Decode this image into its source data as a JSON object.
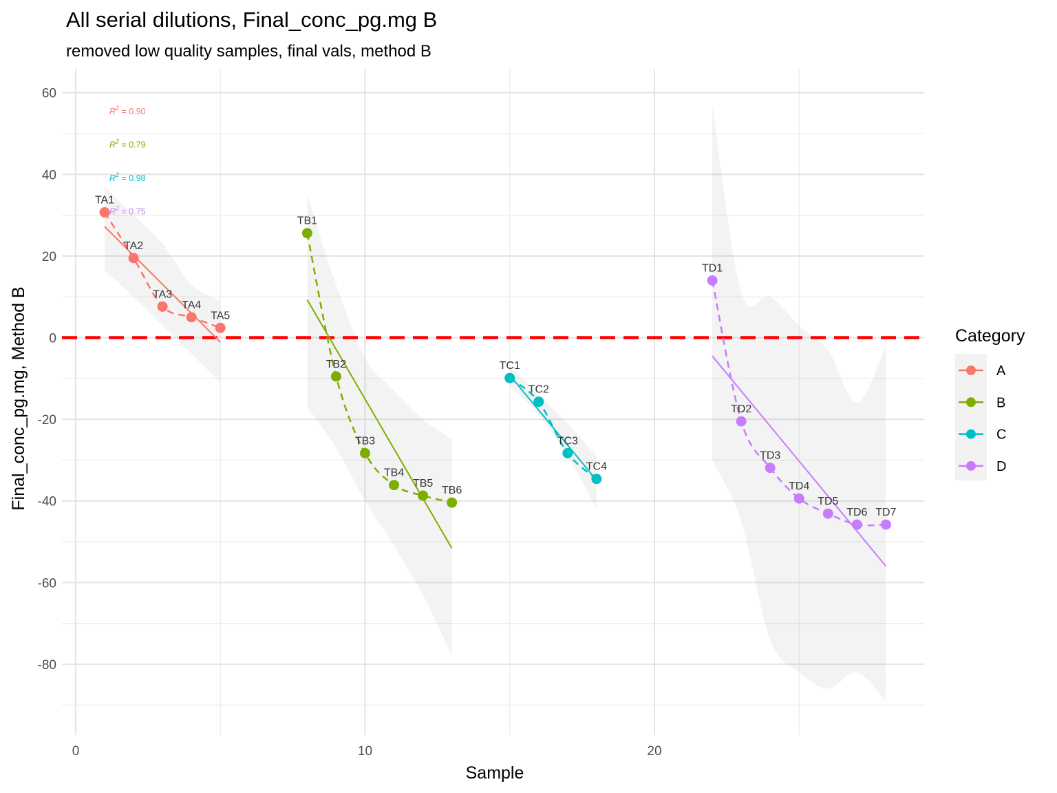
{
  "chart_data": {
    "type": "line",
    "title": "All serial dilutions, Final_conc_pg.mg B",
    "subtitle": "removed low quality samples, final vals, method B",
    "xlabel": "Sample",
    "ylabel": "Final_conc_pg.mg, Method B",
    "xlim": [
      -0.5,
      29
    ],
    "ylim": [
      -97,
      65
    ],
    "x_ticks": [
      0,
      10,
      20
    ],
    "y_ticks": [
      60,
      40,
      20,
      0,
      -20,
      -40,
      -60,
      -80
    ],
    "grid": true,
    "reference_line": {
      "y": 0,
      "color": "#ff0000",
      "style": "dashed"
    },
    "legend": {
      "title": "Category",
      "position": "right"
    },
    "series": [
      {
        "name": "A",
        "color": "#F8766D",
        "points": [
          {
            "label": "TA1",
            "x": 1,
            "y": 30.7
          },
          {
            "label": "TA2",
            "x": 2,
            "y": 19.5
          },
          {
            "label": "TA3",
            "x": 3,
            "y": 7.6
          },
          {
            "label": "TA4",
            "x": 4,
            "y": 5.0
          },
          {
            "label": "TA5",
            "x": 5,
            "y": 2.4
          }
        ],
        "fit": {
          "x": [
            1,
            5
          ],
          "y": [
            27.2,
            -1.1
          ]
        },
        "ribbon": {
          "x": [
            1,
            2,
            3,
            4,
            5
          ],
          "upper": [
            37,
            30,
            23,
            13,
            9
          ],
          "lower": [
            16.5,
            10,
            3,
            -4,
            -11
          ]
        },
        "r2": "0.90"
      },
      {
        "name": "B",
        "color": "#7CAE00",
        "points": [
          {
            "label": "TB1",
            "x": 8,
            "y": 25.6
          },
          {
            "label": "TB2",
            "x": 9,
            "y": -9.5
          },
          {
            "label": "TB3",
            "x": 10,
            "y": -28.3
          },
          {
            "label": "TB4",
            "x": 11,
            "y": -36.1
          },
          {
            "label": "TB5",
            "x": 12,
            "y": -38.7
          },
          {
            "label": "TB6",
            "x": 13,
            "y": -40.4
          }
        ],
        "fit": {
          "x": [
            8,
            13
          ],
          "y": [
            9.3,
            -51.6
          ]
        },
        "ribbon": {
          "x": [
            8,
            9,
            10,
            11,
            12,
            13
          ],
          "upper": [
            35,
            13,
            -5,
            -13,
            -20,
            -25
          ],
          "lower": [
            -17,
            -27,
            -40,
            -51,
            -63,
            -78
          ]
        },
        "r2": "0.79"
      },
      {
        "name": "C",
        "color": "#00BFC4",
        "points": [
          {
            "label": "TC1",
            "x": 15,
            "y": -9.9
          },
          {
            "label": "TC2",
            "x": 16,
            "y": -15.7
          },
          {
            "label": "TC3",
            "x": 17,
            "y": -28.3
          },
          {
            "label": "TC4",
            "x": 18,
            "y": -34.6
          }
        ],
        "fit": {
          "x": [
            15,
            18
          ],
          "y": [
            -9.2,
            -34.9
          ]
        },
        "ribbon": {
          "x": [
            15,
            16,
            17,
            18
          ],
          "upper": [
            -7,
            -14,
            -21,
            -29
          ],
          "lower": [
            -12,
            -19,
            -29,
            -42
          ]
        },
        "r2": "0.98"
      },
      {
        "name": "D",
        "color": "#C77CFF",
        "points": [
          {
            "label": "TD1",
            "x": 22,
            "y": 14.0
          },
          {
            "label": "TD2",
            "x": 23,
            "y": -20.5
          },
          {
            "label": "TD3",
            "x": 24,
            "y": -31.9
          },
          {
            "label": "TD4",
            "x": 25,
            "y": -39.4
          },
          {
            "label": "TD5",
            "x": 26,
            "y": -43.1
          },
          {
            "label": "TD6",
            "x": 27,
            "y": -45.8
          },
          {
            "label": "TD7",
            "x": 28,
            "y": -45.8
          }
        ],
        "fit": {
          "x": [
            22,
            28
          ],
          "y": [
            -4.5,
            -56.0
          ]
        },
        "ribbon": {
          "x": [
            22,
            23,
            24,
            25,
            26,
            27,
            28
          ],
          "upper": [
            57,
            11,
            10,
            3,
            -3,
            -16,
            -2
          ],
          "lower": [
            -30,
            -45,
            -74,
            -82,
            -86,
            -82,
            -89
          ]
        },
        "r2": "0.75"
      }
    ]
  }
}
